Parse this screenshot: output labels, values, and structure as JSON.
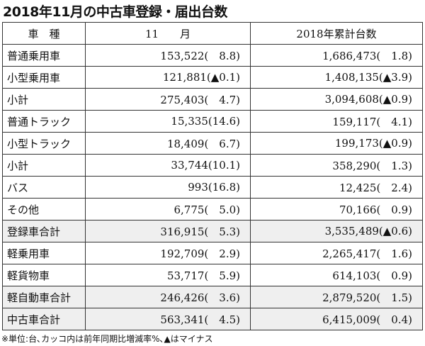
{
  "header": {
    "title": "2018年11月の中古車登録・届出台数"
  },
  "table": {
    "columns": [
      "車　種",
      "11　　月",
      "2018年累計台数"
    ],
    "rows": [
      [
        "普通乗用車",
        "153,522(　8.8)",
        "1,686,473(　1.8)"
      ],
      [
        "小型乗用車",
        "121,881(▲0.1)",
        "1,408,135(▲3.9)"
      ],
      [
        "小計",
        "275,403(　4.7)",
        "3,094,608(▲0.9)"
      ],
      [
        "普通トラック",
        "15,335(14.6)",
        "159,117(　4.1)"
      ],
      [
        "小型トラック",
        "18,409(　6.7)",
        "199,173(▲0.9)"
      ],
      [
        "小計",
        "33,744(10.1)",
        "358,290(　1.3)"
      ],
      [
        "バス",
        "993(16.8)",
        "12,425(　2.4)"
      ],
      [
        "その他",
        "6,775(　5.0)",
        "70,166(　0.9)"
      ],
      [
        "登録車合計",
        "316,915(　5.3)",
        "3,535,489(▲0.6)"
      ],
      [
        "軽乗用車",
        "192,709(　2.9)",
        "2,265,417(　1.6)"
      ],
      [
        "軽貨物車",
        "53,717(　5.9)",
        "614,103(　0.9)"
      ],
      [
        "軽自動車合計",
        "246,426(　3.6)",
        "2,879,520(　1.5)"
      ],
      [
        "中古車合計",
        "563,341(　4.5)",
        "6,415,009(　0.4)"
      ]
    ]
  },
  "footnote": "※単位:台､カッコ内は前年同期比増減率%､▲はマイナス"
}
